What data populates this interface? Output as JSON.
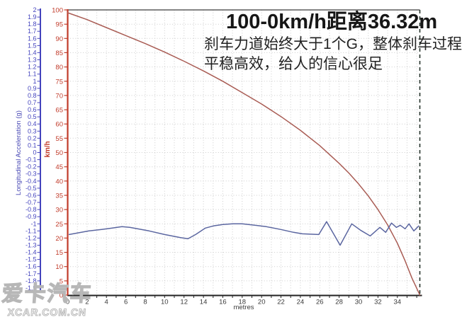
{
  "watermark": {
    "logo_text": "爱卡汽车",
    "site_text": "XCAR.COM.CN"
  },
  "chart_data": {
    "type": "line",
    "title": "100-0km/h距离36.32m",
    "annotation_line1": "刹车力道始终大于1个G，整体刹车过程",
    "annotation_line2": "平稳高效，给人的信心很足",
    "braking_distance_m": 36.32,
    "grid": {
      "color": "#cccccc",
      "style": "dotted",
      "x_step_m": 1,
      "speed_step_kmh": 5
    },
    "x_axis": {
      "label": "metres",
      "min": 0,
      "max": 36.32,
      "tick_labels": [
        0,
        2,
        4,
        6,
        8,
        10,
        12,
        14,
        16,
        18,
        20,
        22,
        24,
        26,
        28,
        30,
        32,
        34
      ],
      "color": "#222222",
      "label_color": "#3a3a3a"
    },
    "speed_axis": {
      "label": "km/h",
      "min": 0,
      "max": 100,
      "tick_step": 5,
      "tick_labels": [
        100,
        95,
        90,
        85,
        80,
        75,
        70,
        65,
        60,
        55,
        50,
        45,
        40,
        35,
        30,
        25,
        20,
        15,
        10,
        5,
        0
      ],
      "color": "#c13b2a"
    },
    "accel_axis": {
      "label": "Longitudinal Acceleration (g)",
      "min": -2,
      "max": 2,
      "tick_step": 0.1,
      "tick_labels": [
        2,
        1.9,
        1.8,
        1.7,
        1.6,
        1.5,
        1.4,
        1.3,
        1.2,
        1.1,
        1,
        0.9,
        0.8,
        0.7,
        0.6,
        0.5,
        0.4,
        0.3,
        0.2,
        0.1,
        0,
        -0.1,
        -0.2,
        -0.3,
        -0.4,
        -0.5,
        -0.6,
        -0.7,
        -0.8,
        -0.9,
        -1,
        -1.1,
        -1.2,
        -1.3,
        -1.4,
        -1.5,
        -1.6,
        -1.7,
        -1.8,
        -1.9
      ],
      "color": "#4343bd"
    },
    "end_marker": {
      "x": 36.32,
      "style": "dashed",
      "color": "#25332b"
    },
    "series": [
      {
        "name": "speed",
        "unit": "km/h",
        "yaxis": "speed",
        "color": "#a95c54",
        "points": [
          [
            0,
            99
          ],
          [
            2,
            96.6
          ],
          [
            4,
            93.8
          ],
          [
            6,
            91
          ],
          [
            8,
            88.2
          ],
          [
            10,
            85.2
          ],
          [
            12,
            82
          ],
          [
            14,
            78.6
          ],
          [
            16,
            75
          ],
          [
            18,
            71
          ],
          [
            20,
            67
          ],
          [
            22,
            62.6
          ],
          [
            24,
            57.8
          ],
          [
            26,
            52.4
          ],
          [
            28,
            46.2
          ],
          [
            29,
            42.8
          ],
          [
            30,
            39
          ],
          [
            31,
            34.8
          ],
          [
            32,
            30
          ],
          [
            33,
            24.6
          ],
          [
            34,
            18.2
          ],
          [
            34.8,
            12
          ],
          [
            35.5,
            6
          ],
          [
            36,
            2.4
          ],
          [
            36.32,
            0
          ]
        ]
      },
      {
        "name": "longitudinal_acceleration",
        "unit": "g",
        "yaxis": "accel",
        "color": "#5b66a0",
        "points": [
          [
            0.15,
            -1.15
          ],
          [
            1,
            -1.13
          ],
          [
            2.2,
            -1.1
          ],
          [
            3.5,
            -1.08
          ],
          [
            4.6,
            -1.06
          ],
          [
            5.6,
            -1.04
          ],
          [
            6.4,
            -1.05
          ],
          [
            7.2,
            -1.07
          ],
          [
            8.4,
            -1.1
          ],
          [
            10,
            -1.15
          ],
          [
            11.5,
            -1.19
          ],
          [
            12.4,
            -1.21
          ],
          [
            13.2,
            -1.15
          ],
          [
            14.2,
            -1.06
          ],
          [
            15,
            -1.03
          ],
          [
            16,
            -1.01
          ],
          [
            17,
            -1.0
          ],
          [
            18,
            -1.0
          ],
          [
            19.3,
            -1.02
          ],
          [
            20.5,
            -1.04
          ],
          [
            22,
            -1.08
          ],
          [
            23.3,
            -1.12
          ],
          [
            24.2,
            -1.14
          ],
          [
            25.9,
            -1.15
          ],
          [
            26.7,
            -0.97
          ],
          [
            28.1,
            -1.3
          ],
          [
            29.3,
            -1.0
          ],
          [
            30.2,
            -1.09
          ],
          [
            31.2,
            -1.17
          ],
          [
            32.2,
            -1.05
          ],
          [
            32.8,
            -1.12
          ],
          [
            33.4,
            -0.99
          ],
          [
            33.9,
            -1.05
          ],
          [
            34.3,
            -1.02
          ],
          [
            34.8,
            -1.07
          ],
          [
            35.2,
            -1.0
          ],
          [
            35.7,
            -1.1
          ],
          [
            36.2,
            -1.03
          ]
        ]
      }
    ]
  }
}
